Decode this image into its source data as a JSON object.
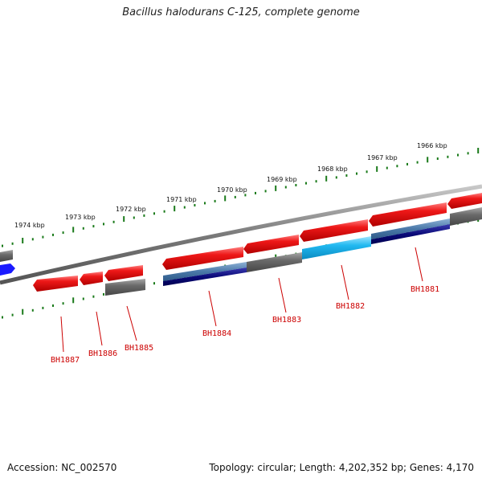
{
  "title": "Bacillus halodurans C-125, complete genome",
  "footer": {
    "accession": "Accession: NC_002570",
    "topology": "Topology: circular; Length: 4,202,352 bp; Genes: 4,170"
  },
  "ruler_labels": [
    "1974 kbp",
    "1973 kbp",
    "1972 kbp",
    "1971 kbp",
    "1970 kbp",
    "1969 kbp",
    "1968 kbp",
    "1967 kbp",
    "1966 kbp"
  ],
  "gene_labels": [
    "BH1887",
    "BH1886",
    "BH1885",
    "BH1884",
    "BH1883",
    "BH1882",
    "BH1881"
  ],
  "colors": {
    "gene_red": "#e81010",
    "gene_gray": "#6a6a6a",
    "steel_blue": "#4a78a8",
    "navy": "#0a0a78",
    "cyan": "#20b8f0",
    "blue": "#1a1aff",
    "tick_green": "#1a7a1a",
    "backbone": "#777777",
    "label_red": "#cc0000"
  }
}
